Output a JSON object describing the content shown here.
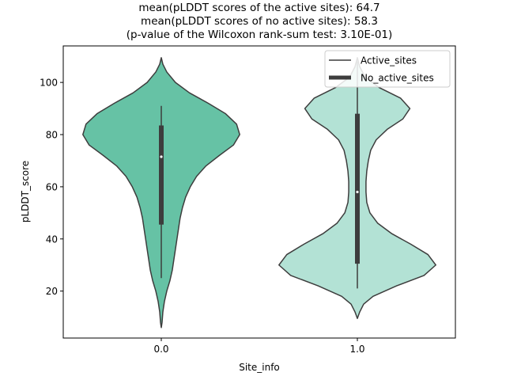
{
  "chart_data": {
    "type": "violin",
    "title_lines": [
      "mean(pLDDT scores of the active sites): 64.7",
      "mean(pLDDT scores of no active sites): 58.3",
      "(p-value of the Wilcoxon rank-sum test: 3.10E-01)"
    ],
    "xlabel": "Site_info",
    "ylabel": "pLDDT_score",
    "categories": [
      "0.0",
      "1.0"
    ],
    "ylim": [
      2,
      114
    ],
    "yticks": [
      20,
      40,
      60,
      80,
      100
    ],
    "grid": false,
    "legend": {
      "placement": "top-right",
      "entries": [
        "Active_sites",
        "No_active_sites"
      ]
    },
    "colors": {
      "violin_0": "#66c2a5",
      "violin_1": "#b3e2d5",
      "edge": "#3d3d3d",
      "box": "#3d3d3d",
      "median": "#ffffff"
    },
    "violins": [
      {
        "category": "0.0",
        "box": {
          "whisker_low": 25,
          "q1": 45.5,
          "median": 71.5,
          "q3": 83.5,
          "whisker_high": 91
        },
        "density": [
          [
            109.5,
            0.0
          ],
          [
            107,
            0.02
          ],
          [
            104,
            0.07
          ],
          [
            100,
            0.18
          ],
          [
            96,
            0.36
          ],
          [
            92,
            0.6
          ],
          [
            88,
            0.82
          ],
          [
            84,
            0.96
          ],
          [
            80,
            1.0
          ],
          [
            76,
            0.92
          ],
          [
            72,
            0.74
          ],
          [
            68,
            0.57
          ],
          [
            64,
            0.45
          ],
          [
            60,
            0.37
          ],
          [
            56,
            0.31
          ],
          [
            52,
            0.27
          ],
          [
            48,
            0.24
          ],
          [
            44,
            0.22
          ],
          [
            40,
            0.2
          ],
          [
            36,
            0.18
          ],
          [
            32,
            0.16
          ],
          [
            28,
            0.14
          ],
          [
            24,
            0.11
          ],
          [
            20,
            0.07
          ],
          [
            16,
            0.04
          ],
          [
            12,
            0.02
          ],
          [
            8,
            0.01
          ],
          [
            6,
            0.0
          ]
        ]
      },
      {
        "category": "1.0",
        "box": {
          "whisker_low": 21,
          "q1": 30.5,
          "median": 58,
          "q3": 88,
          "whisker_high": 108
        },
        "density": [
          [
            109.5,
            0.0
          ],
          [
            106,
            0.03
          ],
          [
            102,
            0.1
          ],
          [
            98,
            0.28
          ],
          [
            94,
            0.55
          ],
          [
            90,
            0.67
          ],
          [
            86,
            0.58
          ],
          [
            82,
            0.38
          ],
          [
            78,
            0.24
          ],
          [
            74,
            0.17
          ],
          [
            70,
            0.14
          ],
          [
            66,
            0.12
          ],
          [
            62,
            0.11
          ],
          [
            58,
            0.11
          ],
          [
            54,
            0.12
          ],
          [
            50,
            0.16
          ],
          [
            46,
            0.26
          ],
          [
            42,
            0.44
          ],
          [
            38,
            0.68
          ],
          [
            34,
            0.9
          ],
          [
            30,
            1.0
          ],
          [
            26,
            0.85
          ],
          [
            22,
            0.5
          ],
          [
            18,
            0.2
          ],
          [
            15,
            0.08
          ],
          [
            12,
            0.03
          ],
          [
            9.5,
            0.0
          ]
        ]
      }
    ]
  }
}
